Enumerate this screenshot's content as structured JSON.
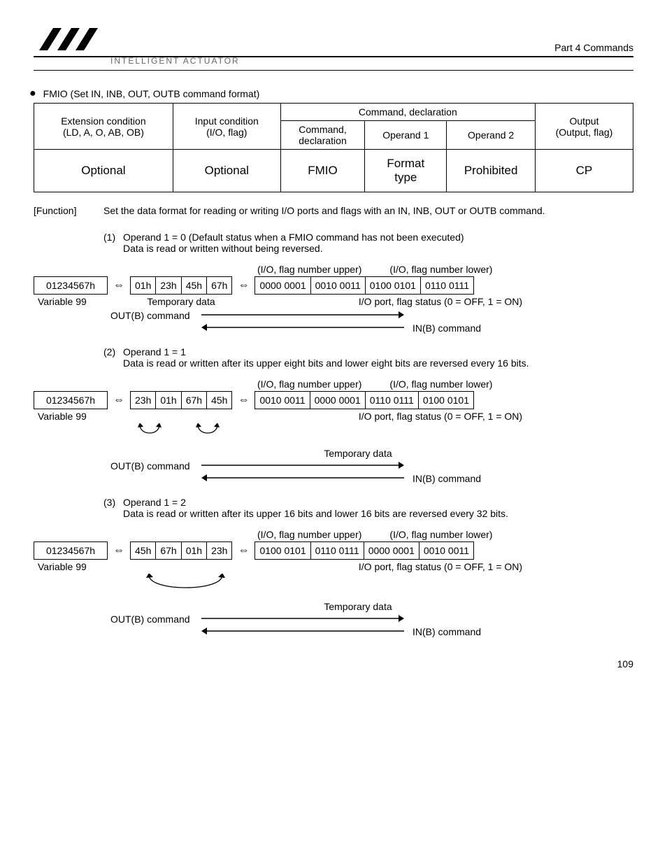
{
  "header": {
    "part_label": "Part 4   Commands",
    "brand": "INTELLIGENT ACTUATOR"
  },
  "title": "FMIO (Set IN, INB, OUT, OUTB command format)",
  "cmd_table": {
    "h1": "Extension condition",
    "h1b": "(LD, A, O, AB, OB)",
    "h2": "Input condition",
    "h2b": "(I/O, flag)",
    "h3_span": "Command, declaration",
    "h3a": "Command,",
    "h3a2": "declaration",
    "h3b": "Operand 1",
    "h3c": "Operand 2",
    "h4": "Output",
    "h4b": "(Output, flag)",
    "r_ext": "Optional",
    "r_in": "Optional",
    "r_cmd": "FMIO",
    "r_op1a": "Format",
    "r_op1b": "type",
    "r_op2": "Prohibited",
    "r_out": "CP"
  },
  "function": {
    "label": "[Function]",
    "text": "Set the data format for reading or writing I/O ports and flags with an IN, INB, OUT or OUTB command."
  },
  "cases": [
    {
      "num": "(1)",
      "head": "Operand 1 = 0 (Default status when a FMIO command has not been executed)",
      "body": "Data is read or written without being reversed."
    },
    {
      "num": "(2)",
      "head": "Operand 1 = 1",
      "body": "Data is read or written after its upper eight bits and lower eight bits are reversed every 16 bits."
    },
    {
      "num": "(3)",
      "head": "Operand 1 = 2",
      "body": "Data is read or written after its upper 16 bits and lower 16 bits are reversed every 32 bits."
    }
  ],
  "labels": {
    "upper": "(I/O, flag number upper)",
    "lower": "(I/O, flag number lower)",
    "var99": "Variable 99",
    "tempdata": "Temporary data",
    "status": "I/O port, flag status (0 = OFF, 1 = ON)",
    "outb": "OUT(B) command",
    "inb": "IN(B) command"
  },
  "diagrams": [
    {
      "var": "01234567h",
      "hex": [
        "01h",
        "23h",
        "45h",
        "67h"
      ],
      "bin": [
        "0000 0001",
        "0010 0011",
        "0100 0101",
        "0110 0111"
      ],
      "swap": "none"
    },
    {
      "var": "01234567h",
      "hex": [
        "23h",
        "01h",
        "67h",
        "45h"
      ],
      "bin": [
        "0010 0011",
        "0000 0001",
        "0110 0111",
        "0100 0101"
      ],
      "swap": "pairs"
    },
    {
      "var": "01234567h",
      "hex": [
        "45h",
        "67h",
        "01h",
        "23h"
      ],
      "bin": [
        "0100 0101",
        "0110 0111",
        "0000 0001",
        "0010 0011"
      ],
      "swap": "halves"
    }
  ],
  "page": "109"
}
